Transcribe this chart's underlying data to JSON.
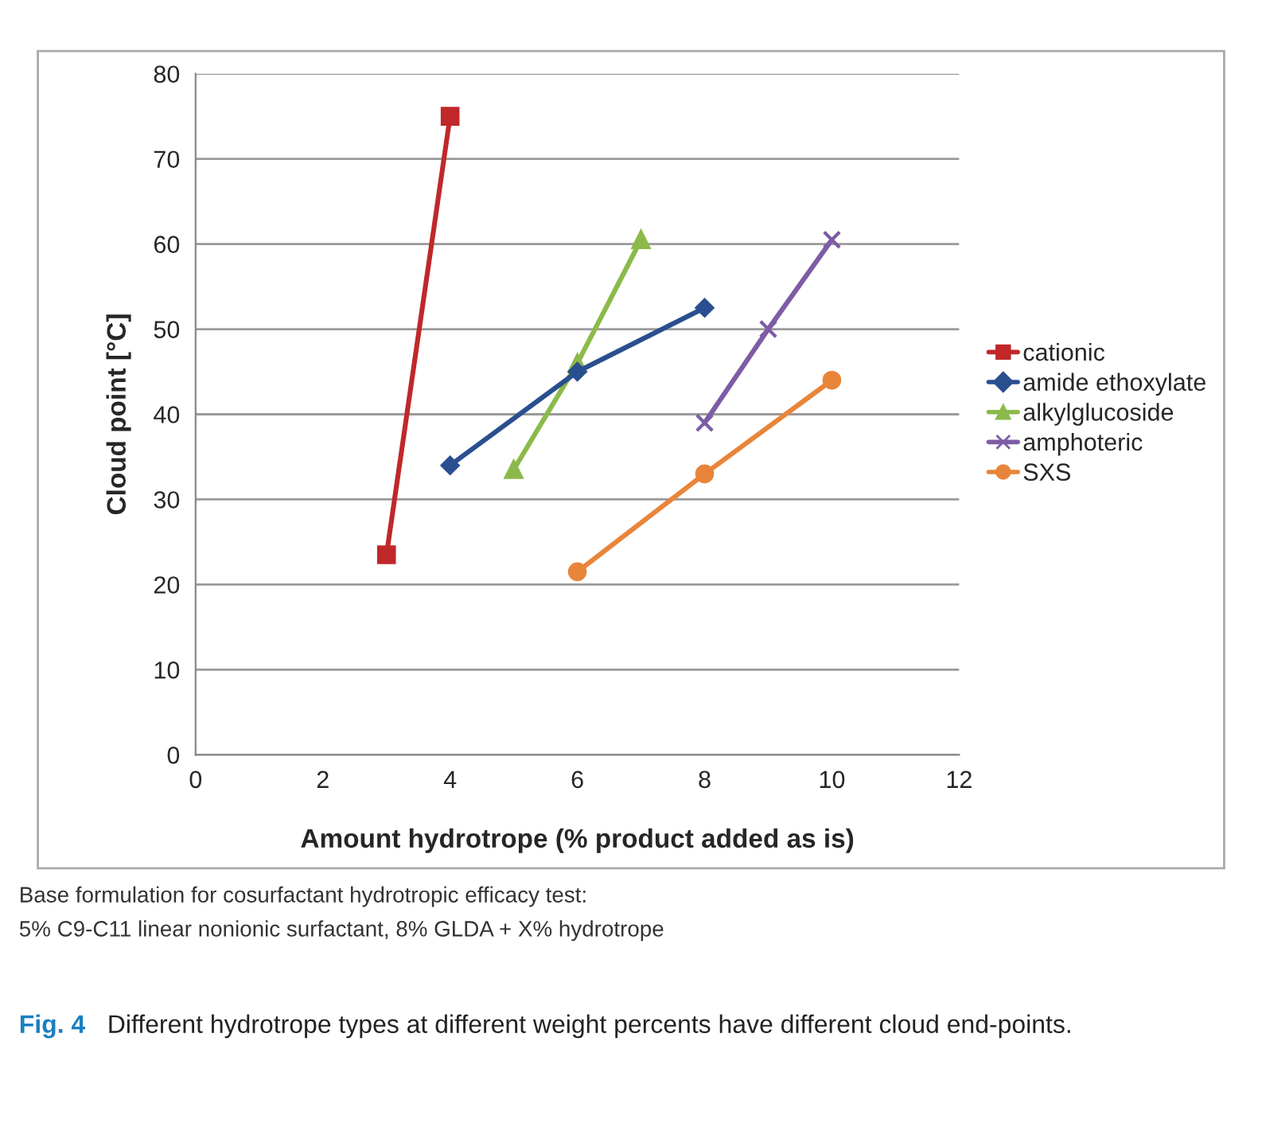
{
  "chart_data": {
    "type": "line",
    "xlabel": "Amount hydrotrope (% product added as is)",
    "ylabel": "Cloud point [°C]",
    "xlim": [
      0,
      12
    ],
    "xticks": [
      0,
      2,
      4,
      6,
      8,
      10,
      12
    ],
    "ylim": [
      0,
      80
    ],
    "yticks": [
      0,
      10,
      20,
      30,
      40,
      50,
      60,
      70,
      80
    ],
    "grid": "y",
    "legend": "right",
    "series": [
      {
        "name": "cationic",
        "color": "#c0282a",
        "marker": "square",
        "x": [
          3,
          4
        ],
        "values": [
          23.5,
          75
        ]
      },
      {
        "name": "amide ethoxylate",
        "color": "#2a4f8f",
        "marker": "diamond",
        "x": [
          4,
          6,
          8
        ],
        "values": [
          34,
          45,
          52.5
        ]
      },
      {
        "name": "alkylglucoside",
        "color": "#8cba4a",
        "marker": "triangle",
        "x": [
          5,
          6,
          7
        ],
        "values": [
          33.5,
          46,
          60.5
        ]
      },
      {
        "name": "amphoteric",
        "color": "#7d5ca5",
        "marker": "cross",
        "x": [
          8,
          9,
          10
        ],
        "values": [
          39,
          50,
          60.5
        ]
      },
      {
        "name": "SXS",
        "color": "#e8853a",
        "marker": "circle",
        "x": [
          6,
          8,
          10
        ],
        "values": [
          21.5,
          33,
          44
        ]
      }
    ],
    "annotations": [
      "Base formulation for cosurfactant hydrotropic efficacy test:",
      "5% C9-C11 linear nonionic surfactant, 8% GLDA + X% hydrotrope",
      "Fig. 4",
      "Different hydrotrope types at different weight percents have different cloud end-points."
    ]
  }
}
